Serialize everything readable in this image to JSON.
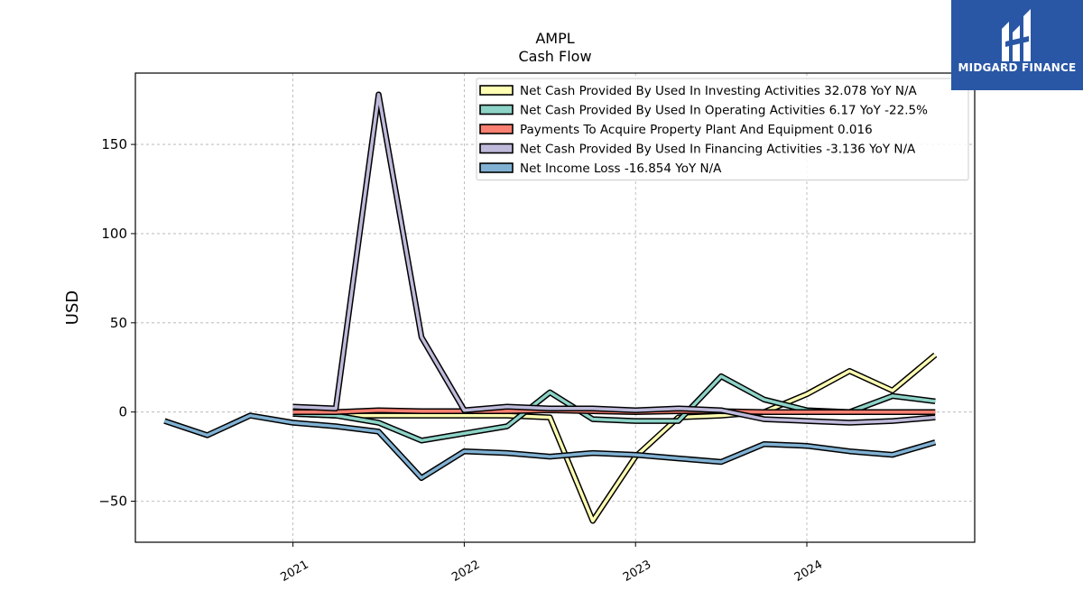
{
  "chart_data": {
    "type": "line",
    "title": "AMPL",
    "subtitle": "Cash Flow",
    "ylabel": "USD",
    "xlabel": "",
    "ylim": [
      -73,
      190
    ],
    "xlim": [
      2020.08,
      2024.98
    ],
    "yticks": [
      -50,
      0,
      50,
      100,
      150
    ],
    "xticks": [
      {
        "value": 2021,
        "label": "2021"
      },
      {
        "value": 2022,
        "label": "2022"
      },
      {
        "value": 2023,
        "label": "2023"
      },
      {
        "value": 2024,
        "label": "2024"
      }
    ],
    "grid": true,
    "legend_position": "top-right",
    "series": [
      {
        "name": "Net Cash Provided By Used In Investing Activities  32.078 YoY N/A",
        "color": "#ffffb3",
        "x": [
          2021.0,
          2021.25,
          2021.5,
          2021.75,
          2022.0,
          2022.25,
          2022.5,
          2022.75,
          2023.0,
          2023.25,
          2023.5,
          2023.75,
          2024.0,
          2024.25,
          2024.5,
          2024.75
        ],
        "y": [
          -1,
          -2,
          -2,
          -2,
          -2,
          -2,
          -3,
          -61,
          -25,
          -3,
          -2,
          0,
          10,
          23,
          12,
          32
        ]
      },
      {
        "name": "Net Cash Provided By Used In Operating Activities  6.17 YoY -22.5%",
        "color": "#8dd3c7",
        "x": [
          2021.0,
          2021.25,
          2021.5,
          2021.75,
          2022.0,
          2022.25,
          2022.5,
          2022.75,
          2023.0,
          2023.25,
          2023.5,
          2023.75,
          2024.0,
          2024.25,
          2024.5,
          2024.75
        ],
        "y": [
          -1,
          -2,
          -6,
          -16,
          -12,
          -8,
          11,
          -4,
          -5,
          -5,
          20,
          7,
          1,
          0,
          9,
          6
        ]
      },
      {
        "name": "Payments To Acquire Property Plant And Equipment  0.016",
        "color": "#fb8072",
        "x": [
          2021.0,
          2021.25,
          2021.5,
          2021.75,
          2022.0,
          2022.25,
          2022.5,
          2022.75,
          2023.0,
          2023.25,
          2023.5,
          2023.75,
          2024.0,
          2024.25,
          2024.5,
          2024.75
        ],
        "y": [
          0,
          0,
          1,
          0.5,
          0.5,
          0.5,
          1,
          0.5,
          0,
          0.5,
          0.5,
          0,
          0,
          0,
          0,
          0
        ]
      },
      {
        "name": "Net Cash Provided By Used In Financing Activities  -3.136 YoY N/A",
        "color": "#bebada",
        "x": [
          2021.0,
          2021.25,
          2021.5,
          2021.75,
          2022.0,
          2022.25,
          2022.5,
          2022.75,
          2023.0,
          2023.25,
          2023.5,
          2023.75,
          2024.0,
          2024.25,
          2024.5,
          2024.75
        ],
        "y": [
          3,
          2,
          178,
          42,
          1,
          3,
          2,
          2,
          1,
          2,
          1,
          -4,
          -5,
          -6,
          -5,
          -3
        ]
      },
      {
        "name": "Net Income Loss  -16.854 YoY N/A",
        "color": "#80b1d3",
        "x": [
          2020.25,
          2020.5,
          2020.75,
          2021.0,
          2021.25,
          2021.5,
          2021.75,
          2022.0,
          2022.25,
          2022.5,
          2022.75,
          2023.0,
          2023.25,
          2023.5,
          2023.75,
          2024.0,
          2024.25,
          2024.5,
          2024.75
        ],
        "y": [
          -5,
          -13,
          -2,
          -6,
          -8,
          -11,
          -37,
          -22,
          -23,
          -25,
          -23,
          -24,
          -26,
          -28,
          -18,
          -19,
          -22,
          -24,
          -17
        ]
      }
    ]
  },
  "logo": {
    "text": "MIDGARD FINANCE"
  }
}
